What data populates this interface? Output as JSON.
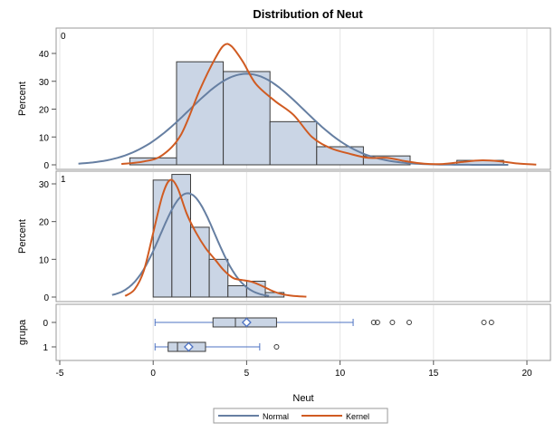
{
  "chart_data": {
    "type": "histogram_with_boxplot",
    "title": "Distribution of Neut",
    "xlabel": "Neut",
    "xlim": [
      -5,
      21
    ],
    "x_ticks": [
      -5,
      0,
      5,
      10,
      15,
      20
    ],
    "legend": {
      "placement": "bottom-center",
      "entries": [
        {
          "name": "Normal",
          "color": "#667fa2"
        },
        {
          "name": "Kernel",
          "color": "#d05b22"
        }
      ]
    },
    "colors": {
      "bar_fill": "#cad5e5",
      "bar_stroke": "#3b3b3b",
      "normal": "#667fa2",
      "kernel": "#d05b22",
      "grid": "#e5e5e5",
      "marker": "#4e73c3"
    },
    "panels": [
      {
        "label": "0",
        "ylabel": "Percent",
        "ylim": [
          0,
          45
        ],
        "y_ticks": [
          0,
          10,
          20,
          30,
          40
        ],
        "bins": [
          {
            "x0": -1.25,
            "x1": 1.25,
            "percent": 2.5
          },
          {
            "x0": 1.25,
            "x1": 3.75,
            "percent": 37
          },
          {
            "x0": 3.75,
            "x1": 6.25,
            "percent": 33.5
          },
          {
            "x0": 6.25,
            "x1": 8.75,
            "percent": 15.5
          },
          {
            "x0": 8.75,
            "x1": 11.25,
            "percent": 6.5
          },
          {
            "x0": 11.25,
            "x1": 13.75,
            "percent": 3.2
          },
          {
            "x0": 13.75,
            "x1": 16.25,
            "percent": 0
          },
          {
            "x0": 16.25,
            "x1": 18.75,
            "percent": 1.6
          }
        ],
        "normal": {
          "mean": 5.0,
          "sd": 3.05,
          "xmin": -4,
          "xmax": 19
        },
        "kernel": [
          [
            -1.7,
            0.3
          ],
          [
            -0.5,
            1.2
          ],
          [
            0.5,
            3.5
          ],
          [
            1.5,
            11
          ],
          [
            2.5,
            27
          ],
          [
            3.3,
            38
          ],
          [
            3.8,
            43
          ],
          [
            4.2,
            42.5
          ],
          [
            4.8,
            37
          ],
          [
            5.5,
            29
          ],
          [
            6.5,
            23
          ],
          [
            7.5,
            18
          ],
          [
            8.5,
            10
          ],
          [
            9.5,
            6
          ],
          [
            10.5,
            4
          ],
          [
            11.5,
            2.5
          ],
          [
            12.5,
            2.5
          ],
          [
            13.5,
            1.3
          ],
          [
            14.5,
            0.4
          ],
          [
            15.5,
            0.3
          ],
          [
            16.5,
            1.0
          ],
          [
            17.5,
            1.6
          ],
          [
            18.5,
            1.3
          ],
          [
            19.5,
            0.5
          ],
          [
            20.5,
            0.1
          ]
        ]
      },
      {
        "label": "1",
        "ylabel": "Percent",
        "ylim": [
          0,
          33
        ],
        "y_ticks": [
          0,
          10,
          20,
          30
        ],
        "bins": [
          {
            "x0": 0.0,
            "x1": 1.0,
            "percent": 31
          },
          {
            "x0": 1.0,
            "x1": 2.0,
            "percent": 32.5
          },
          {
            "x0": 2.0,
            "x1": 3.0,
            "percent": 18.5
          },
          {
            "x0": 3.0,
            "x1": 4.0,
            "percent": 10
          },
          {
            "x0": 4.0,
            "x1": 5.0,
            "percent": 3
          },
          {
            "x0": 5.0,
            "x1": 6.0,
            "percent": 4.2
          },
          {
            "x0": 6.0,
            "x1": 7.0,
            "percent": 1.2
          }
        ],
        "normal": {
          "mean": 1.85,
          "sd": 1.45,
          "xmin": -2.2,
          "xmax": 6.2
        },
        "kernel": [
          [
            -1.5,
            0.3
          ],
          [
            -1.0,
            2
          ],
          [
            -0.5,
            7
          ],
          [
            0.0,
            17
          ],
          [
            0.5,
            27
          ],
          [
            0.9,
            31
          ],
          [
            1.3,
            29
          ],
          [
            1.8,
            22
          ],
          [
            2.3,
            17
          ],
          [
            2.8,
            13
          ],
          [
            3.3,
            10
          ],
          [
            3.8,
            7
          ],
          [
            4.3,
            5
          ],
          [
            4.8,
            4.5
          ],
          [
            5.3,
            4
          ],
          [
            5.8,
            3
          ],
          [
            6.3,
            1.8
          ],
          [
            6.8,
            0.9
          ],
          [
            7.5,
            0.3
          ],
          [
            8.2,
            0.1
          ]
        ]
      }
    ],
    "boxplot": {
      "ylabel": "grupa",
      "categories": [
        "0",
        "1"
      ],
      "groups": [
        {
          "name": "0",
          "whisker_low": 0.1,
          "q1": 3.2,
          "median": 4.4,
          "q3": 6.6,
          "whisker_high": 10.7,
          "mean": 5.0,
          "outliers": [
            11.8,
            12.0,
            12.8,
            13.7,
            17.7,
            18.1
          ]
        },
        {
          "name": "1",
          "whisker_low": 0.1,
          "q1": 0.8,
          "median": 1.3,
          "q3": 2.8,
          "whisker_high": 5.7,
          "mean": 1.9,
          "outliers": [
            6.6
          ]
        }
      ]
    }
  }
}
